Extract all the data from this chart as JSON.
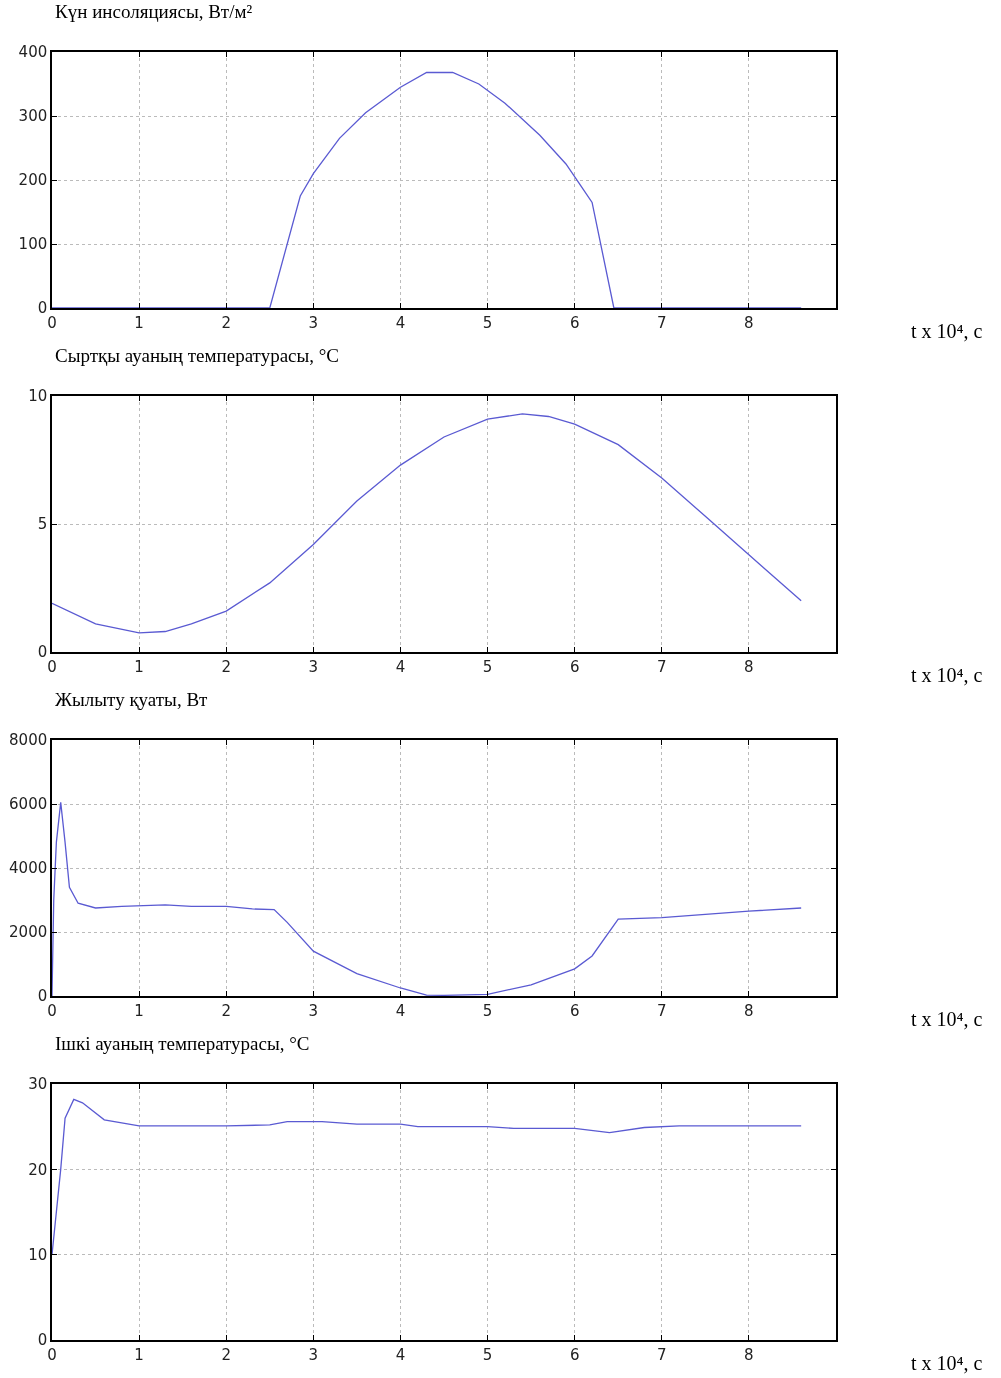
{
  "chart_data": [
    {
      "type": "line",
      "title": "Күн инсоляциясы, Вт/м²",
      "xlabel": "t x 10⁴, c",
      "xlim": [
        0,
        9
      ],
      "xticks": [
        0,
        1,
        2,
        3,
        4,
        5,
        6,
        7,
        8
      ],
      "ylim": [
        0,
        400
      ],
      "yticks": [
        0,
        100,
        200,
        300,
        400
      ],
      "grid": true,
      "marker": "none",
      "line_style": "solid",
      "series": [
        {
          "color": "#5a5ad2",
          "x": [
            0,
            1,
            2,
            2.5,
            2.85,
            3,
            3.3,
            3.6,
            4,
            4.3,
            4.6,
            4.9,
            5.2,
            5.6,
            5.9,
            6.05,
            6.2,
            6.45,
            7,
            8,
            8.6
          ],
          "values": [
            0,
            0,
            0,
            0,
            175,
            210,
            265,
            305,
            345,
            368,
            368,
            350,
            320,
            270,
            225,
            195,
            165,
            0,
            0,
            0,
            0
          ]
        }
      ]
    },
    {
      "type": "line",
      "title": "Сыртқы ауаның температурасы, °С",
      "xlabel": "t x 10⁴, c",
      "xlim": [
        0,
        9
      ],
      "xticks": [
        0,
        1,
        2,
        3,
        4,
        5,
        6,
        7,
        8
      ],
      "ylim": [
        0,
        10
      ],
      "yticks": [
        0,
        5,
        10
      ],
      "grid": true,
      "marker": "none",
      "line_style": "solid",
      "series": [
        {
          "color": "#5a5ad2",
          "x": [
            0,
            0.5,
            1,
            1.3,
            1.6,
            2,
            2.5,
            3,
            3.5,
            4,
            4.5,
            5,
            5.4,
            5.7,
            6,
            6.5,
            7,
            7.5,
            8,
            8.6
          ],
          "values": [
            1.9,
            1.1,
            0.75,
            0.8,
            1.1,
            1.6,
            2.7,
            4.2,
            5.9,
            7.3,
            8.4,
            9.1,
            9.3,
            9.2,
            8.9,
            8.1,
            6.8,
            5.3,
            3.8,
            2.0
          ]
        }
      ]
    },
    {
      "type": "line",
      "title": "Жылыту қуаты, Вт",
      "xlabel": "t x 10⁴, c",
      "xlim": [
        0,
        9
      ],
      "xticks": [
        0,
        1,
        2,
        3,
        4,
        5,
        6,
        7,
        8
      ],
      "ylim": [
        0,
        8000
      ],
      "yticks": [
        0,
        2000,
        4000,
        6000,
        8000
      ],
      "grid": true,
      "marker": "none",
      "line_style": "solid",
      "series": [
        {
          "color": "#5a5ad2",
          "x": [
            0,
            0.02,
            0.05,
            0.1,
            0.15,
            0.2,
            0.3,
            0.5,
            0.8,
            1.3,
            1.6,
            2,
            2.3,
            2.55,
            2.7,
            3,
            3.5,
            4,
            4.3,
            4.5,
            5,
            5.5,
            6,
            6.2,
            6.5,
            7,
            7.5,
            8,
            8.6
          ],
          "values": [
            0,
            3000,
            4800,
            6050,
            4800,
            3400,
            2900,
            2750,
            2800,
            2850,
            2800,
            2800,
            2720,
            2700,
            2300,
            1400,
            700,
            250,
            30,
            20,
            50,
            350,
            850,
            1250,
            2400,
            2450,
            2550,
            2650,
            2750
          ]
        }
      ]
    },
    {
      "type": "line",
      "title": "Ішкі ауаның температурасы, °С",
      "xlabel": "t x 10⁴, c",
      "xlim": [
        0,
        9
      ],
      "xticks": [
        0,
        1,
        2,
        3,
        4,
        5,
        6,
        7,
        8
      ],
      "ylim": [
        0,
        30
      ],
      "yticks": [
        0,
        10,
        20,
        30
      ],
      "grid": true,
      "marker": "none",
      "line_style": "solid",
      "series": [
        {
          "color": "#5a5ad2",
          "x": [
            0,
            0.1,
            0.15,
            0.25,
            0.35,
            0.6,
            1,
            2,
            2.5,
            2.7,
            3.1,
            3.5,
            4,
            4.2,
            5,
            5.3,
            6,
            6.4,
            6.8,
            7.2,
            8,
            8.6
          ],
          "values": [
            10,
            20,
            26,
            28.2,
            27.8,
            25.8,
            25.1,
            25.1,
            25.2,
            25.6,
            25.6,
            25.3,
            25.3,
            25.0,
            25.0,
            24.8,
            24.8,
            24.3,
            24.9,
            25.1,
            25.1,
            25.1
          ]
        }
      ]
    }
  ]
}
